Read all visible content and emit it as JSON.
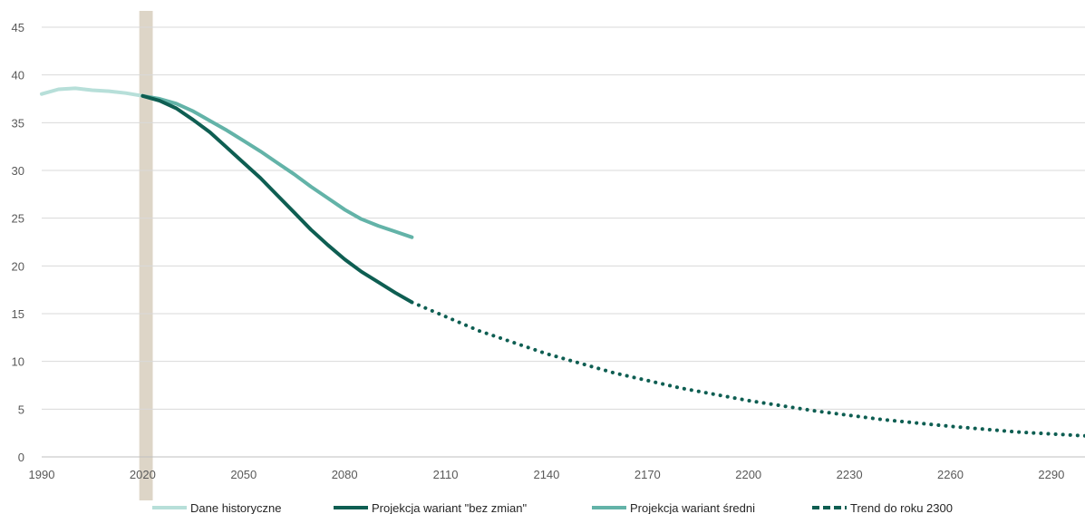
{
  "chart_data": {
    "type": "line",
    "title": "",
    "xlabel": "",
    "ylabel": "",
    "xlim": [
      1990,
      2300
    ],
    "ylim": [
      0,
      45
    ],
    "x_ticks": [
      "1990",
      "2020",
      "2050",
      "2080",
      "2110",
      "2140",
      "2170",
      "2200",
      "2230",
      "2260",
      "2290"
    ],
    "y_ticks": [
      "0",
      "5",
      "10",
      "15",
      "20",
      "25",
      "30",
      "35",
      "40",
      "45"
    ],
    "grid": "horizontal",
    "legend_position": "bottom",
    "highlight_band": [
      2019,
      2023
    ],
    "colors": {
      "historical": "#b7dfd9",
      "no_change": "#0e5e52",
      "medium": "#63b3a8",
      "trend": "#0e5e52",
      "band": "#ddd5c7",
      "grid": "#d9d9d9"
    },
    "series": [
      {
        "name": "Dane historyczne",
        "style": "solid",
        "x": [
          1990,
          1995,
          2000,
          2005,
          2010,
          2015,
          2020
        ],
        "y": [
          38.0,
          38.5,
          38.6,
          38.4,
          38.3,
          38.1,
          37.8
        ]
      },
      {
        "name": "Projekcja wariant \"bez zmian\"",
        "style": "solid",
        "x": [
          2020,
          2025,
          2030,
          2035,
          2040,
          2045,
          2050,
          2055,
          2060,
          2065,
          2070,
          2075,
          2080,
          2085,
          2090,
          2095,
          2100
        ],
        "y": [
          37.8,
          37.3,
          36.5,
          35.3,
          34.0,
          32.4,
          30.8,
          29.2,
          27.4,
          25.6,
          23.8,
          22.2,
          20.7,
          19.4,
          18.3,
          17.2,
          16.2
        ]
      },
      {
        "name": "Projekcja wariant średni",
        "style": "solid",
        "x": [
          2020,
          2025,
          2030,
          2035,
          2040,
          2045,
          2050,
          2055,
          2060,
          2065,
          2070,
          2075,
          2080,
          2085,
          2090,
          2095,
          2100
        ],
        "y": [
          37.8,
          37.5,
          37.0,
          36.2,
          35.2,
          34.2,
          33.1,
          32.0,
          30.8,
          29.6,
          28.3,
          27.1,
          25.9,
          24.9,
          24.2,
          23.6,
          23.0
        ]
      },
      {
        "name": "Trend do roku 2300",
        "style": "dotted",
        "x": [
          2100,
          2120,
          2140,
          2160,
          2180,
          2200,
          2220,
          2240,
          2260,
          2280,
          2300
        ],
        "y": [
          16.2,
          13.2,
          10.8,
          8.8,
          7.2,
          5.9,
          4.8,
          3.9,
          3.2,
          2.6,
          2.2
        ]
      }
    ]
  }
}
